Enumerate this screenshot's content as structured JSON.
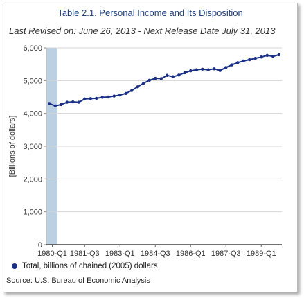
{
  "header": {
    "title": "Table 2.1. Personal Income and Its Disposition",
    "subtitle": "Last Revised on: June 26, 2013 - Next Release Date July 31, 2013"
  },
  "legend": {
    "label": "Total, billions of chained (2005) dollars"
  },
  "source": "Source: U.S. Bureau of Economic Analysis",
  "colors": {
    "series": "#1a2f86",
    "highlight_band": "#bcd0e4",
    "grid": "#d4d4d4",
    "title": "#1f3f7a"
  },
  "chart_data": {
    "type": "line",
    "title": "Table 2.1. Personal Income and Its Disposition",
    "ylabel": "[Billions of dollars]",
    "xlabel": "",
    "ylim": [
      0,
      6000
    ],
    "yticks": [
      0,
      1000,
      2000,
      3000,
      4000,
      5000,
      6000
    ],
    "ytick_labels": [
      "0",
      "1,000",
      "2,000",
      "3,000",
      "4,000",
      "5,000",
      "6,000"
    ],
    "xtick_labels": [
      "1980-Q1",
      "1981-Q3",
      "1983-Q1",
      "1984-Q3",
      "1986-Q1",
      "1987-Q3",
      "1989-Q1"
    ],
    "grid": true,
    "legend_position": "bottom-left",
    "highlight": "1980-Q1",
    "x": [
      "1980-Q1",
      "1980-Q2",
      "1980-Q3",
      "1980-Q4",
      "1981-Q1",
      "1981-Q2",
      "1981-Q3",
      "1981-Q4",
      "1982-Q1",
      "1982-Q2",
      "1982-Q3",
      "1982-Q4",
      "1983-Q1",
      "1983-Q2",
      "1983-Q3",
      "1983-Q4",
      "1984-Q1",
      "1984-Q2",
      "1984-Q3",
      "1984-Q4",
      "1985-Q1",
      "1985-Q2",
      "1985-Q3",
      "1985-Q4",
      "1986-Q1",
      "1986-Q2",
      "1986-Q3",
      "1986-Q4",
      "1987-Q1",
      "1987-Q2",
      "1987-Q3",
      "1987-Q4",
      "1988-Q1",
      "1988-Q2",
      "1988-Q3",
      "1988-Q4",
      "1989-Q1",
      "1989-Q2",
      "1989-Q3",
      "1989-Q4"
    ],
    "series": [
      {
        "name": "Total, billions of chained (2005) dollars",
        "values": [
          4300,
          4230,
          4270,
          4340,
          4350,
          4340,
          4440,
          4450,
          4460,
          4490,
          4500,
          4530,
          4560,
          4610,
          4700,
          4810,
          4920,
          5010,
          5070,
          5060,
          5160,
          5120,
          5170,
          5240,
          5300,
          5330,
          5350,
          5330,
          5360,
          5310,
          5400,
          5480,
          5550,
          5600,
          5640,
          5680,
          5720,
          5770,
          5740,
          5790
        ]
      }
    ]
  }
}
